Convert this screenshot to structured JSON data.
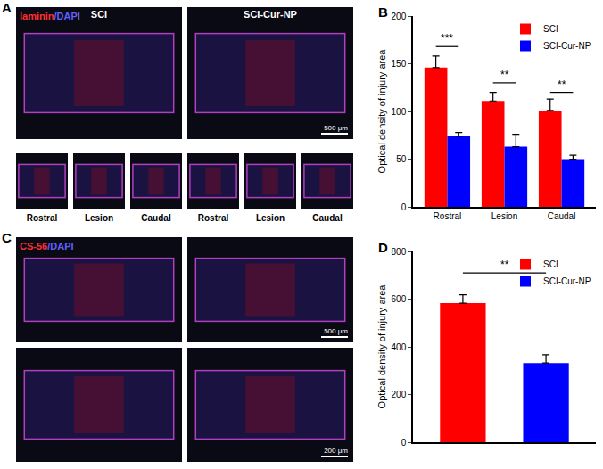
{
  "panels": [
    {
      "letter": "A",
      "stain": [
        "laminin",
        "/DAPI"
      ],
      "groups": [
        "SCI",
        "SCI-Cur-NP"
      ],
      "scale_bar": "500 μm",
      "insets": [
        "Rostral",
        "Lesion",
        "Caudal"
      ]
    },
    {
      "letter": "C",
      "stain": [
        "CS-56",
        "/DAPI"
      ],
      "scale_bar": "500 μm",
      "inset_scale_bar": "200 μm"
    }
  ],
  "chart_data": [
    {
      "panel": "B",
      "type": "bar",
      "categories": [
        "Rostral",
        "Lesion",
        "Caudal"
      ],
      "series": [
        {
          "name": "SCI",
          "color": "#ff0000",
          "values": [
            146,
            111,
            101
          ],
          "errors": [
            12,
            9,
            12
          ]
        },
        {
          "name": "SCI-Cur-NP",
          "color": "#0000ff",
          "values": [
            74,
            63,
            50
          ],
          "errors": [
            4,
            13,
            4
          ]
        }
      ],
      "y_label": "Optical density of injury area",
      "ylim": [
        0,
        200
      ],
      "yticks": [
        0,
        50,
        100,
        150,
        200
      ],
      "legend": "top-right",
      "grid": false,
      "annotations": [
        {
          "text": "***",
          "category": "Rostral",
          "y": 168
        },
        {
          "text": "**",
          "category": "Lesion",
          "y": 130
        },
        {
          "text": "**",
          "category": "Caudal",
          "y": 120
        }
      ]
    },
    {
      "panel": "D",
      "type": "bar",
      "categories": [
        null,
        null
      ],
      "series": [
        {
          "name": "SCI",
          "color": "#ff0000",
          "values": [
            583,
            null
          ],
          "errors": [
            35,
            null
          ]
        },
        {
          "name": "SCI-Cur-NP",
          "color": "#0000ff",
          "values": [
            null,
            332
          ],
          "errors": [
            null,
            35
          ]
        }
      ],
      "y_label": "Optical density of injury area",
      "ylim": [
        0,
        800
      ],
      "yticks": [
        0,
        200,
        400,
        600,
        800
      ],
      "legend": "top-right",
      "grid": false,
      "tick_labels": "y",
      "annotations": [
        {
          "text": "**",
          "series": [
            "SCI",
            "SCI-Cur-NP"
          ],
          "y": 710
        }
      ]
    }
  ]
}
